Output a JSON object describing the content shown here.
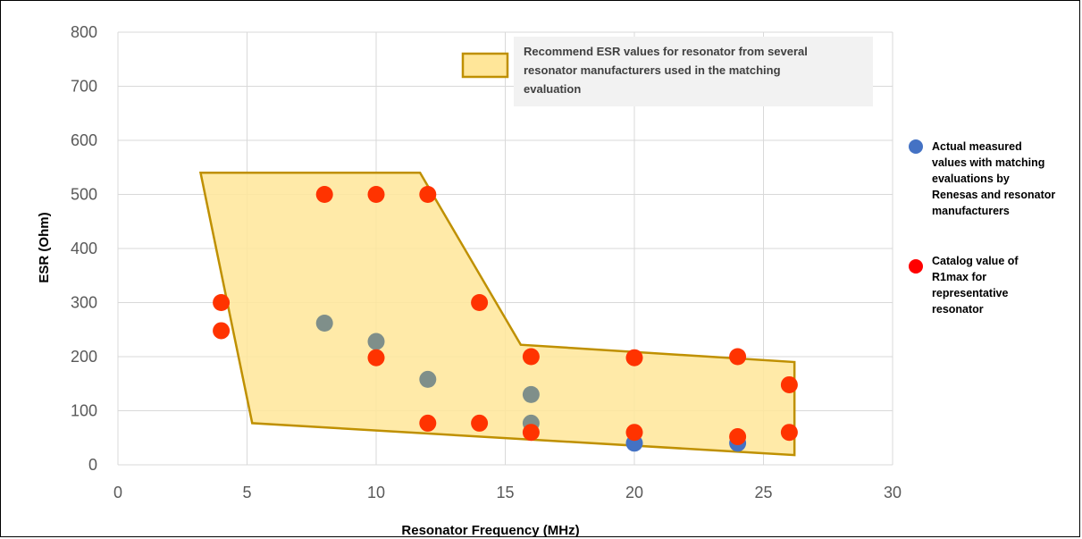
{
  "chart_data": {
    "type": "scatter",
    "xlabel": "Resonator Frequency (MHz)",
    "ylabel": "ESR (Ohm)",
    "xlim": [
      0,
      30
    ],
    "ylim": [
      0,
      800
    ],
    "x_ticks": [
      0,
      5,
      10,
      15,
      20,
      25,
      30
    ],
    "y_ticks": [
      0,
      100,
      200,
      300,
      400,
      500,
      600,
      700,
      800
    ],
    "grid": true,
    "colors": {
      "measured": "#4472c4",
      "catalog": "#ff0000",
      "region_fill": "#ffe699",
      "region_stroke": "#bf9000",
      "grid": "#d9d9d9"
    },
    "region": {
      "legend_lines": [
        "Recommend ESR values for resonator from several",
        "resonator manufacturers used in the matching",
        "evaluation"
      ],
      "polygon": [
        [
          3.2,
          540
        ],
        [
          11.7,
          540
        ],
        [
          15.6,
          222
        ],
        [
          26.2,
          190
        ],
        [
          26.2,
          18
        ],
        [
          5.2,
          77
        ]
      ]
    },
    "series": [
      {
        "key": "measured",
        "legend_lines": [
          "Actual measured",
          "values with matching",
          "evaluations by",
          "Renesas and resonator",
          "manufacturers"
        ],
        "points": [
          [
            8,
            262
          ],
          [
            10,
            228
          ],
          [
            12,
            158
          ],
          [
            16,
            130
          ],
          [
            16,
            77
          ],
          [
            20,
            40
          ],
          [
            24,
            40
          ]
        ]
      },
      {
        "key": "catalog",
        "legend_lines": [
          "Catalog value of",
          "R1max for",
          "representative",
          "resonator"
        ],
        "points": [
          [
            4,
            300
          ],
          [
            4,
            248
          ],
          [
            8,
            500
          ],
          [
            10,
            500
          ],
          [
            12,
            500
          ],
          [
            10,
            198
          ],
          [
            14,
            300
          ],
          [
            12,
            77
          ],
          [
            14,
            77
          ],
          [
            16,
            200
          ],
          [
            16,
            60
          ],
          [
            20,
            198
          ],
          [
            20,
            60
          ],
          [
            24,
            200
          ],
          [
            24,
            52
          ],
          [
            26,
            148
          ],
          [
            26,
            60
          ]
        ]
      }
    ]
  }
}
